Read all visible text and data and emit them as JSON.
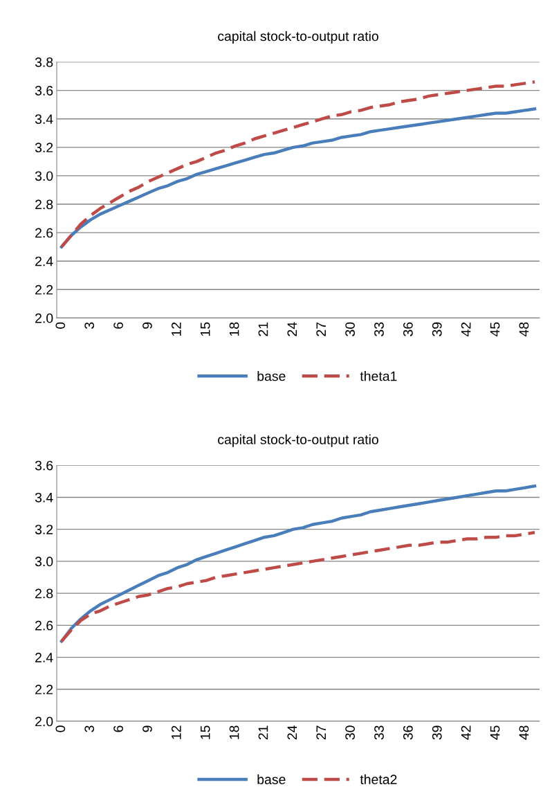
{
  "chart_data": [
    {
      "type": "line",
      "title": "capital stock-to-output ratio",
      "categories": [
        "0",
        null,
        null,
        "3",
        null,
        null,
        "6",
        null,
        null,
        "9",
        null,
        null,
        "12",
        null,
        null,
        "15",
        null,
        null,
        "18",
        null,
        null,
        "21",
        null,
        null,
        "24",
        null,
        null,
        "27",
        null,
        null,
        "30",
        null,
        null,
        "33",
        null,
        null,
        "36",
        null,
        null,
        "39",
        null,
        null,
        "42",
        null,
        null,
        "45",
        null,
        null,
        "48",
        null
      ],
      "series": [
        {
          "name": "base",
          "color": "#4a7ebb",
          "line_style": "solid",
          "values": [
            2.5,
            2.58,
            2.64,
            2.69,
            2.73,
            2.76,
            2.79,
            2.82,
            2.85,
            2.88,
            2.91,
            2.93,
            2.96,
            2.98,
            3.01,
            3.03,
            3.05,
            3.07,
            3.09,
            3.11,
            3.13,
            3.15,
            3.16,
            3.18,
            3.2,
            3.21,
            3.23,
            3.24,
            3.25,
            3.27,
            3.28,
            3.29,
            3.31,
            3.32,
            3.33,
            3.34,
            3.35,
            3.36,
            3.37,
            3.38,
            3.39,
            3.4,
            3.41,
            3.42,
            3.43,
            3.44,
            3.44,
            3.45,
            3.46,
            3.47
          ]
        },
        {
          "name": "theta1",
          "color": "#be4b48",
          "line_style": "dashed",
          "values": [
            2.5,
            2.58,
            2.66,
            2.72,
            2.77,
            2.81,
            2.85,
            2.89,
            2.92,
            2.96,
            2.99,
            3.02,
            3.05,
            3.08,
            3.1,
            3.13,
            3.16,
            3.18,
            3.21,
            3.23,
            3.26,
            3.28,
            3.3,
            3.32,
            3.34,
            3.36,
            3.38,
            3.4,
            3.42,
            3.43,
            3.45,
            3.46,
            3.48,
            3.49,
            3.5,
            3.52,
            3.53,
            3.54,
            3.56,
            3.57,
            3.58,
            3.59,
            3.6,
            3.61,
            3.62,
            3.63,
            3.63,
            3.64,
            3.65,
            3.66
          ]
        }
      ],
      "ylim": [
        2.0,
        3.8
      ],
      "yticks": [
        {
          "value": 2.0,
          "label": "2.0"
        },
        {
          "value": 2.2,
          "label": "2.2"
        },
        {
          "value": 2.4,
          "label": "2.4"
        },
        {
          "value": 2.6,
          "label": "2.6"
        },
        {
          "value": 2.8,
          "label": "2.8"
        },
        {
          "value": 3.0,
          "label": "3.0"
        },
        {
          "value": 3.2,
          "label": "3.2"
        },
        {
          "value": 3.4,
          "label": "3.4"
        },
        {
          "value": 3.6,
          "label": "3.6"
        },
        {
          "value": 3.8,
          "label": "3.8"
        }
      ],
      "grid": "y",
      "legend": "bottom",
      "marker": "none"
    },
    {
      "type": "line",
      "title": "capital stock-to-output ratio",
      "categories": [
        "0",
        null,
        null,
        "3",
        null,
        null,
        "6",
        null,
        null,
        "9",
        null,
        null,
        "12",
        null,
        null,
        "15",
        null,
        null,
        "18",
        null,
        null,
        "21",
        null,
        null,
        "24",
        null,
        null,
        "27",
        null,
        null,
        "30",
        null,
        null,
        "33",
        null,
        null,
        "36",
        null,
        null,
        "39",
        null,
        null,
        "42",
        null,
        null,
        "45",
        null,
        null,
        "48",
        null
      ],
      "series": [
        {
          "name": "base",
          "color": "#4a7ebb",
          "line_style": "solid",
          "values": [
            2.5,
            2.58,
            2.64,
            2.69,
            2.73,
            2.76,
            2.79,
            2.82,
            2.85,
            2.88,
            2.91,
            2.93,
            2.96,
            2.98,
            3.01,
            3.03,
            3.05,
            3.07,
            3.09,
            3.11,
            3.13,
            3.15,
            3.16,
            3.18,
            3.2,
            3.21,
            3.23,
            3.24,
            3.25,
            3.27,
            3.28,
            3.29,
            3.31,
            3.32,
            3.33,
            3.34,
            3.35,
            3.36,
            3.37,
            3.38,
            3.39,
            3.4,
            3.41,
            3.42,
            3.43,
            3.44,
            3.44,
            3.45,
            3.46,
            3.47
          ]
        },
        {
          "name": "theta2",
          "color": "#be4b48",
          "line_style": "dashed",
          "values": [
            2.5,
            2.57,
            2.63,
            2.67,
            2.69,
            2.72,
            2.74,
            2.76,
            2.78,
            2.79,
            2.81,
            2.83,
            2.84,
            2.86,
            2.87,
            2.88,
            2.9,
            2.91,
            2.92,
            2.93,
            2.94,
            2.95,
            2.96,
            2.97,
            2.98,
            2.99,
            3.0,
            3.01,
            3.02,
            3.03,
            3.04,
            3.05,
            3.06,
            3.07,
            3.08,
            3.09,
            3.1,
            3.1,
            3.11,
            3.12,
            3.12,
            3.13,
            3.14,
            3.14,
            3.15,
            3.15,
            3.16,
            3.16,
            3.17,
            3.18
          ]
        }
      ],
      "ylim": [
        2.0,
        3.6
      ],
      "yticks": [
        {
          "value": 2.0,
          "label": "2.0"
        },
        {
          "value": 2.2,
          "label": "2.2"
        },
        {
          "value": 2.4,
          "label": "2.4"
        },
        {
          "value": 2.6,
          "label": "2.6"
        },
        {
          "value": 2.8,
          "label": "2.8"
        },
        {
          "value": 3.0,
          "label": "3.0"
        },
        {
          "value": 3.2,
          "label": "3.2"
        },
        {
          "value": 3.4,
          "label": "3.4"
        },
        {
          "value": 3.6,
          "label": "3.6"
        }
      ],
      "grid": "y",
      "legend": "bottom",
      "marker": "none"
    }
  ]
}
